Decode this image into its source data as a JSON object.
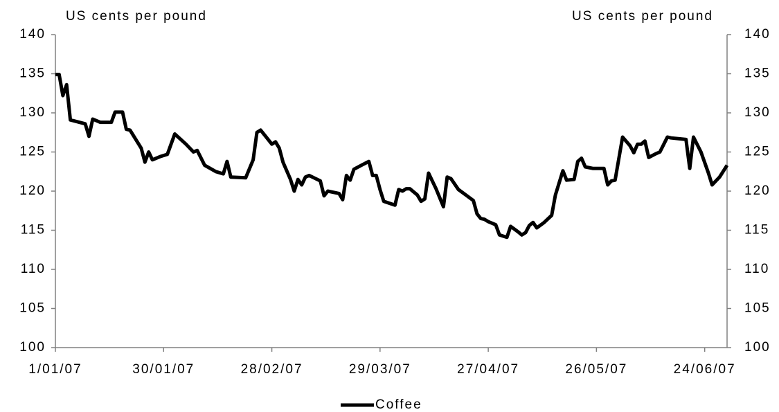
{
  "chart_data": {
    "type": "line",
    "y_label": "US cents per pound",
    "y2_label": "US cents per pound",
    "x": [
      "1/01/07",
      "2/01/07",
      "3/01/07",
      "4/01/07",
      "5/01/07",
      "9/01/07",
      "10/01/07",
      "11/01/07",
      "13/01/07",
      "16/01/07",
      "17/01/07",
      "19/01/07",
      "20/01/07",
      "21/01/07",
      "24/01/07",
      "25/01/07",
      "26/01/07",
      "27/01/07",
      "29/01/07",
      "31/01/07",
      "2/02/07",
      "5/02/07",
      "7/02/07",
      "8/02/07",
      "10/02/07",
      "13/02/07",
      "15/02/07",
      "16/02/07",
      "17/02/07",
      "21/02/07",
      "23/02/07",
      "24/02/07",
      "25/02/07",
      "28/02/07",
      "1/03/07",
      "2/03/07",
      "3/03/07",
      "5/03/07",
      "6/03/07",
      "7/03/07",
      "8/03/07",
      "9/03/07",
      "10/03/07",
      "13/03/07",
      "14/03/07",
      "15/03/07",
      "18/03/07",
      "19/03/07",
      "20/03/07",
      "21/03/07",
      "22/03/07",
      "24/03/07",
      "26/03/07",
      "27/03/07",
      "28/03/07",
      "29/03/07",
      "30/03/07",
      "2/04/07",
      "3/04/07",
      "4/04/07",
      "5/04/07",
      "6/04/07",
      "8/04/07",
      "9/04/07",
      "10/04/07",
      "11/04/07",
      "13/04/07",
      "15/04/07",
      "16/04/07",
      "17/04/07",
      "19/04/07",
      "21/04/07",
      "23/04/07",
      "24/04/07",
      "25/04/07",
      "26/04/07",
      "27/04/07",
      "29/04/07",
      "30/04/07",
      "2/05/07",
      "3/05/07",
      "5/05/07",
      "6/05/07",
      "7/05/07",
      "8/05/07",
      "9/05/07",
      "10/05/07",
      "12/05/07",
      "14/05/07",
      "15/05/07",
      "17/05/07",
      "18/05/07",
      "20/05/07",
      "21/05/07",
      "22/05/07",
      "23/05/07",
      "25/05/07",
      "28/05/07",
      "29/05/07",
      "30/05/07",
      "31/05/07",
      "2/06/07",
      "4/06/07",
      "5/06/07",
      "6/06/07",
      "7/06/07",
      "8/06/07",
      "9/06/07",
      "11/06/07",
      "12/06/07",
      "14/06/07",
      "15/06/07",
      "19/06/07",
      "20/06/07",
      "21/06/07",
      "23/06/07",
      "25/06/07",
      "26/06/07",
      "28/06/07",
      "30/06/07"
    ],
    "series": [
      {
        "name": "Coffee",
        "color": "#000000",
        "values": [
          134.9,
          134.9,
          132.2,
          133.6,
          129.1,
          128.6,
          127.0,
          129.2,
          128.8,
          128.8,
          130.1,
          130.1,
          127.9,
          127.8,
          125.5,
          123.7,
          125.0,
          124.0,
          124.4,
          124.7,
          127.3,
          126.0,
          125.0,
          125.2,
          123.3,
          122.5,
          122.2,
          123.8,
          121.8,
          121.7,
          124.0,
          127.5,
          127.8,
          126.0,
          126.3,
          125.5,
          123.7,
          121.5,
          120.0,
          121.5,
          120.8,
          121.8,
          122.0,
          121.3,
          119.4,
          120.0,
          119.7,
          118.9,
          122.0,
          121.4,
          122.8,
          123.3,
          123.8,
          122.0,
          122.0,
          120.2,
          118.7,
          118.2,
          120.2,
          120.0,
          120.3,
          120.3,
          119.5,
          118.7,
          119.0,
          122.3,
          120.3,
          118.0,
          121.8,
          121.6,
          120.2,
          119.5,
          118.8,
          117.1,
          116.5,
          116.4,
          116.1,
          115.7,
          114.4,
          114.1,
          115.5,
          114.8,
          114.4,
          114.7,
          115.6,
          116.0,
          115.3,
          116.0,
          116.9,
          119.5,
          122.6,
          121.4,
          121.5,
          123.8,
          124.2,
          123.1,
          122.9,
          122.9,
          120.8,
          121.3,
          121.4,
          126.9,
          125.8,
          124.9,
          126.0,
          126.0,
          126.4,
          124.3,
          124.8,
          125.0,
          126.9,
          126.8,
          126.6,
          122.9,
          126.9,
          125.0,
          122.3,
          120.8,
          121.8,
          123.3
        ]
      }
    ],
    "xlim": [
      "1/01/07",
      "30/06/07"
    ],
    "xticks": [
      "1/01/07",
      "30/01/07",
      "28/02/07",
      "29/03/07",
      "27/04/07",
      "26/05/07",
      "24/06/07"
    ],
    "ylim": [
      100,
      140
    ],
    "yticks": [
      100,
      105,
      110,
      115,
      120,
      125,
      130,
      135,
      140
    ],
    "y2lim": [
      100,
      140
    ],
    "y2ticks": [
      100,
      105,
      110,
      115,
      120,
      125,
      130,
      135,
      140
    ],
    "legend": "bottom",
    "grid": false
  }
}
